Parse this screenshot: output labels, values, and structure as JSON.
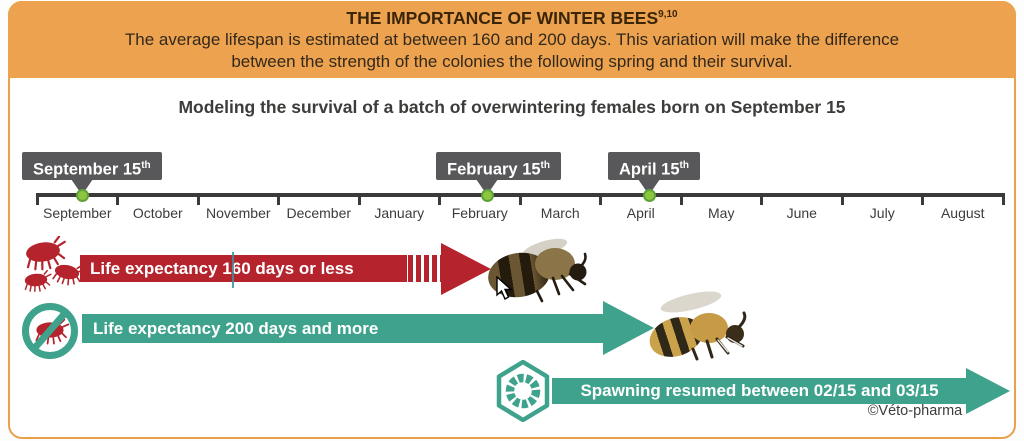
{
  "header": {
    "title": "THE IMPORTANCE OF WINTER BEES",
    "title_superscript": "9,10",
    "subtitle_line1": "The average lifespan is estimated at between 160 and 200 days. This variation will make the difference",
    "subtitle_line2": "between the strength of the colonies the following spring and their survival."
  },
  "diagram_title": "Modeling the survival of a batch of overwintering females born on September 15",
  "timeline": {
    "months": [
      "September",
      "October",
      "November",
      "December",
      "January",
      "February",
      "March",
      "April",
      "May",
      "June",
      "July",
      "August"
    ],
    "markers": [
      {
        "label": "September 15",
        "sup": "th"
      },
      {
        "label": "February 15",
        "sup": "th"
      },
      {
        "label": "April 15",
        "sup": "th"
      }
    ]
  },
  "rows": {
    "red": {
      "label": "Life expectancy 160 days or less",
      "icon": "varroa-mites"
    },
    "green": {
      "label": "Life expectancy 200 days and more",
      "icon": "no-varroa-mite"
    },
    "spawn": {
      "label": "Spawning resumed between 02/15 and 03/15",
      "icon": "brood-cell-larva"
    }
  },
  "credit": "©Véto-pharma",
  "colors": {
    "banner_orange": "#ECA24F",
    "arrow_red": "#B5232D",
    "arrow_teal": "#3EA28C",
    "flag_gray": "#58585A",
    "dot_green": "#8CC63F",
    "text_dark": "#3C3C3B"
  },
  "chart_data": {
    "type": "timeline",
    "axis_months": [
      "September",
      "October",
      "November",
      "December",
      "January",
      "February",
      "March",
      "April",
      "May",
      "June",
      "July",
      "August"
    ],
    "events": [
      {
        "date": "September 15",
        "meaning": "birth of overwintering females"
      },
      {
        "date": "February 15"
      },
      {
        "date": "April 15"
      }
    ],
    "spans": [
      {
        "name": "Life expectancy 160 days or less",
        "start": "September 15",
        "end": "~February 15",
        "color": "#B5232D",
        "icon": "varroa-mites"
      },
      {
        "name": "Life expectancy 200 days and more",
        "start": "September 15",
        "end": "~April 15",
        "color": "#3EA28C",
        "icon": "no-varroa-mite"
      },
      {
        "name": "Spawning resumed between 02/15 and 03/15",
        "start": "February 15",
        "end": "August",
        "color": "#3EA28C",
        "icon": "brood-cell-larva"
      }
    ],
    "legend_position": "none",
    "grid": false
  }
}
